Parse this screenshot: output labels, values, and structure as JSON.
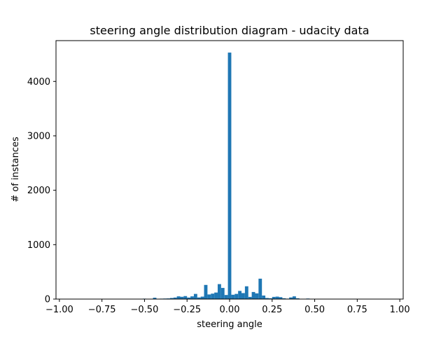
{
  "chart_data": {
    "type": "bar",
    "title": "steering angle distribution diagram - udacity data",
    "xlabel": "steering angle",
    "ylabel": "# of instances",
    "xlim": [
      -1.02,
      1.02
    ],
    "ylim": [
      0,
      4750
    ],
    "grid": false,
    "bar_color": "#1f77b4",
    "xticks": [
      {
        "value": -1.0,
        "label": "−1.00"
      },
      {
        "value": -0.75,
        "label": "−0.75"
      },
      {
        "value": -0.5,
        "label": "−0.50"
      },
      {
        "value": -0.25,
        "label": "−0.25"
      },
      {
        "value": 0.0,
        "label": "0.00"
      },
      {
        "value": 0.25,
        "label": "0.25"
      },
      {
        "value": 0.5,
        "label": "0.50"
      },
      {
        "value": 0.75,
        "label": "0.75"
      },
      {
        "value": 1.0,
        "label": "1.00"
      }
    ],
    "yticks": [
      {
        "value": 0,
        "label": "0"
      },
      {
        "value": 1000,
        "label": "1000"
      },
      {
        "value": 2000,
        "label": "2000"
      },
      {
        "value": 3000,
        "label": "3000"
      },
      {
        "value": 4000,
        "label": "4000"
      }
    ],
    "bin_width": 0.02,
    "bins": [
      {
        "x": -0.5,
        "value": 8
      },
      {
        "x": -0.44,
        "value": 25
      },
      {
        "x": -0.4,
        "value": 8
      },
      {
        "x": -0.38,
        "value": 10
      },
      {
        "x": -0.36,
        "value": 12
      },
      {
        "x": -0.34,
        "value": 20
      },
      {
        "x": -0.32,
        "value": 28
      },
      {
        "x": -0.3,
        "value": 50
      },
      {
        "x": -0.28,
        "value": 42
      },
      {
        "x": -0.26,
        "value": 55
      },
      {
        "x": -0.24,
        "value": 28
      },
      {
        "x": -0.22,
        "value": 50
      },
      {
        "x": -0.2,
        "value": 95
      },
      {
        "x": -0.18,
        "value": 30
      },
      {
        "x": -0.16,
        "value": 45
      },
      {
        "x": -0.14,
        "value": 260
      },
      {
        "x": -0.12,
        "value": 85
      },
      {
        "x": -0.1,
        "value": 100
      },
      {
        "x": -0.08,
        "value": 120
      },
      {
        "x": -0.06,
        "value": 275
      },
      {
        "x": -0.04,
        "value": 205
      },
      {
        "x": -0.02,
        "value": 75
      },
      {
        "x": 0.0,
        "value": 4530
      },
      {
        "x": 0.02,
        "value": 80
      },
      {
        "x": 0.04,
        "value": 95
      },
      {
        "x": 0.06,
        "value": 150
      },
      {
        "x": 0.08,
        "value": 110
      },
      {
        "x": 0.1,
        "value": 235
      },
      {
        "x": 0.12,
        "value": 40
      },
      {
        "x": 0.14,
        "value": 130
      },
      {
        "x": 0.16,
        "value": 105
      },
      {
        "x": 0.18,
        "value": 375
      },
      {
        "x": 0.2,
        "value": 65
      },
      {
        "x": 0.22,
        "value": 20
      },
      {
        "x": 0.24,
        "value": 15
      },
      {
        "x": 0.26,
        "value": 40
      },
      {
        "x": 0.28,
        "value": 45
      },
      {
        "x": 0.3,
        "value": 35
      },
      {
        "x": 0.32,
        "value": 15
      },
      {
        "x": 0.34,
        "value": 8
      },
      {
        "x": 0.36,
        "value": 30
      },
      {
        "x": 0.38,
        "value": 50
      },
      {
        "x": 0.4,
        "value": 15
      },
      {
        "x": 0.46,
        "value": 10
      }
    ]
  }
}
